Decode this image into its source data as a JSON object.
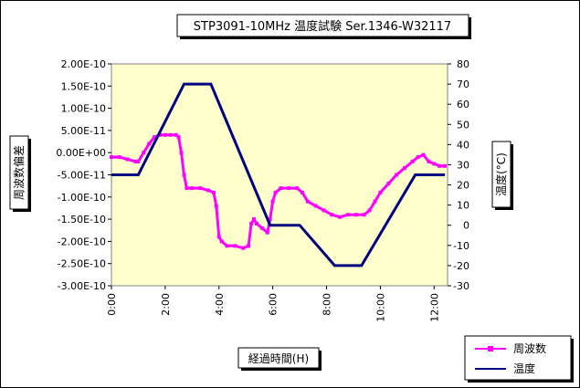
{
  "chart_data": {
    "type": "line",
    "title": "STP3091-10MHz 温度試験 Ser.1346-W32117",
    "xlabel": "経過時間(H)",
    "ylabel_left": "周波数偏差",
    "ylabel_right": "温度(°C)",
    "x_range": [
      0,
      12.5
    ],
    "x_ticks": [
      "0:00",
      "2:00",
      "4:00",
      "6:00",
      "8:00",
      "10:00",
      "12:00"
    ],
    "x_tick_values": [
      0,
      2,
      4,
      6,
      8,
      10,
      12
    ],
    "ylim_left": [
      -3e-10,
      2e-10
    ],
    "y_ticks_left": [
      "2.00E-10",
      "1.50E-10",
      "1.00E-10",
      "5.00E-11",
      "0.00E+00",
      "-5.00E-11",
      "-1.00E-10",
      "-1.50E-10",
      "-2.00E-10",
      "-2.50E-10",
      "-3.00E-10"
    ],
    "ylim_right": [
      -30,
      80
    ],
    "y_ticks_right": [
      "80",
      "70",
      "60",
      "50",
      "40",
      "30",
      "20",
      "10",
      "0",
      "-10",
      "-20",
      "-30"
    ],
    "grid": false,
    "plot_background": "#ffffcc",
    "legend_position": "bottom-right",
    "series": [
      {
        "name": "周波数",
        "axis": "left",
        "color": "#ff00ff",
        "marker": "square",
        "x": [
          0.0,
          0.3,
          0.6,
          0.9,
          1.0,
          1.2,
          1.4,
          1.6,
          1.8,
          2.0,
          2.2,
          2.4,
          2.5,
          2.6,
          2.7,
          2.8,
          3.0,
          3.3,
          3.6,
          3.8,
          3.9,
          4.0,
          4.1,
          4.3,
          4.6,
          4.9,
          5.1,
          5.2,
          5.3,
          5.4,
          5.6,
          5.8,
          5.9,
          6.0,
          6.1,
          6.3,
          6.6,
          6.9,
          7.1,
          7.3,
          7.6,
          7.9,
          8.2,
          8.5,
          8.8,
          9.1,
          9.4,
          9.6,
          9.8,
          10.0,
          10.3,
          10.6,
          10.9,
          11.2,
          11.4,
          11.6,
          11.8,
          12.0,
          12.2,
          12.4
        ],
        "values": [
          -1e-11,
          -1e-11,
          -1.5e-11,
          -2e-11,
          -2e-11,
          0.0,
          2e-11,
          3.5e-11,
          4e-11,
          4e-11,
          4e-11,
          4e-11,
          3.5e-11,
          0.0,
          -5e-11,
          -8e-11,
          -8e-11,
          -8e-11,
          -8.5e-11,
          -9e-11,
          -1.2e-10,
          -1.9e-10,
          -2e-10,
          -2.1e-10,
          -2.1e-10,
          -2.15e-10,
          -2.1e-10,
          -1.6e-10,
          -1.5e-10,
          -1.6e-10,
          -1.7e-10,
          -1.8e-10,
          -1.5e-10,
          -1.1e-10,
          -9e-11,
          -8e-11,
          -8e-11,
          -8e-11,
          -9e-11,
          -1.1e-10,
          -1.2e-10,
          -1.3e-10,
          -1.4e-10,
          -1.45e-10,
          -1.4e-10,
          -1.4e-10,
          -1.4e-10,
          -1.3e-10,
          -1.1e-10,
          -9e-11,
          -7e-11,
          -5e-11,
          -3.5e-11,
          -2e-11,
          -1e-11,
          -5e-12,
          -2e-11,
          -2.5e-11,
          -3e-11,
          -3e-11
        ]
      },
      {
        "name": "温度",
        "axis": "right",
        "color": "#000080",
        "x": [
          0,
          1.0,
          2.7,
          3.7,
          5.9,
          7.0,
          8.3,
          9.3,
          11.3,
          12.4
        ],
        "values": [
          25,
          25,
          70,
          70,
          0,
          0,
          -20,
          -20,
          25,
          25
        ]
      }
    ]
  }
}
